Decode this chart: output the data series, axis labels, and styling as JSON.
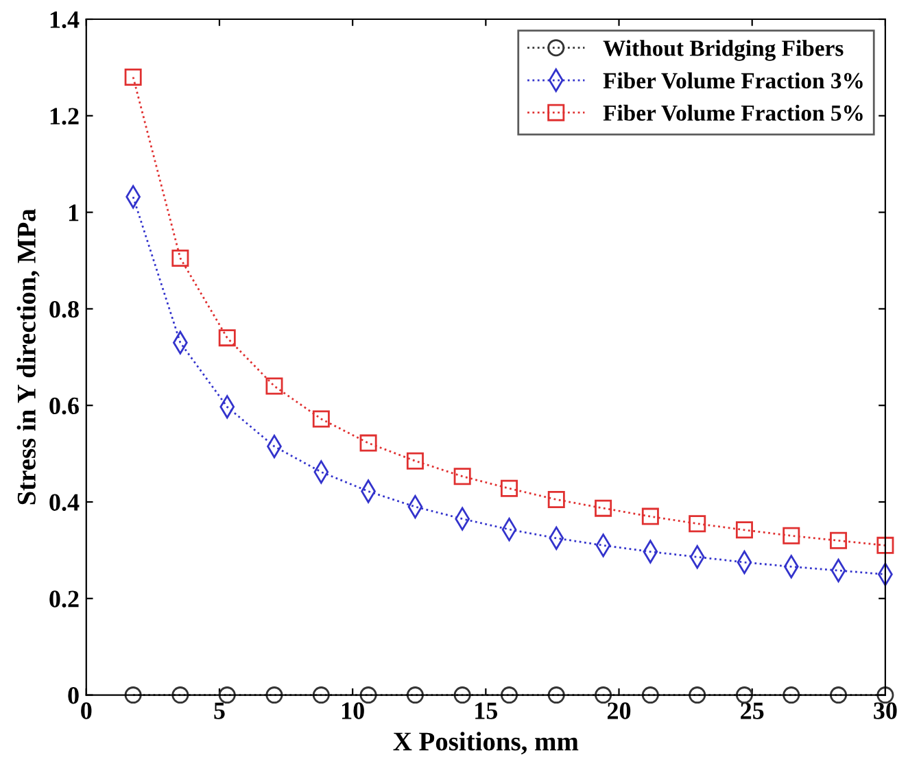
{
  "chart_data": {
    "type": "line",
    "xlabel": "X Positions, mm",
    "ylabel": "Stress in Y direction, MPa",
    "x": [
      1.76,
      3.53,
      5.29,
      7.06,
      8.82,
      10.59,
      12.35,
      14.12,
      15.88,
      17.65,
      19.41,
      21.18,
      22.94,
      24.71,
      26.47,
      28.24,
      30
    ],
    "series": [
      {
        "name": "Without Bridging Fibers",
        "color": "#333333",
        "marker": "circle",
        "values": [
          0,
          0,
          0,
          0,
          0,
          0,
          0,
          0,
          0,
          0,
          0,
          0,
          0,
          0,
          0,
          0,
          0
        ]
      },
      {
        "name": "Fiber Volume Fraction 3%",
        "color": "#3333cc",
        "marker": "diamond",
        "values": [
          1.032,
          0.73,
          0.597,
          0.515,
          0.462,
          0.422,
          0.39,
          0.365,
          0.343,
          0.325,
          0.31,
          0.297,
          0.286,
          0.275,
          0.266,
          0.258,
          0.25
        ]
      },
      {
        "name": "Fiber Volume Fraction 5%",
        "color": "#e03030",
        "marker": "square",
        "values": [
          1.28,
          0.905,
          0.74,
          0.64,
          0.572,
          0.522,
          0.485,
          0.453,
          0.428,
          0.405,
          0.387,
          0.37,
          0.355,
          0.342,
          0.33,
          0.32,
          0.31
        ]
      }
    ],
    "xlim": [
      0,
      30
    ],
    "xticks": [
      0,
      5,
      10,
      15,
      20,
      25,
      30
    ],
    "ylim": [
      0,
      1.4
    ],
    "yticks": [
      0,
      0.2,
      0.4,
      0.6,
      0.8,
      1,
      1.2,
      1.4
    ],
    "line_style": "dotted",
    "legend": "top right",
    "grid": false
  }
}
